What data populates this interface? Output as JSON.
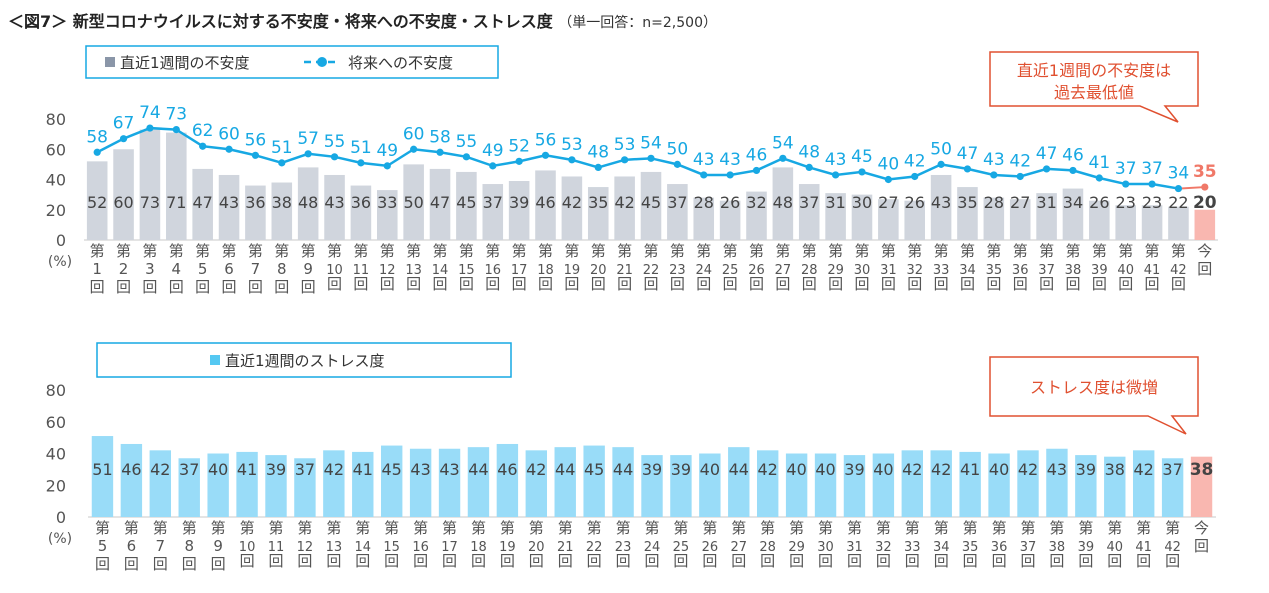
{
  "figure": {
    "title": "＜図7＞ 新型コロナウイルスに対する不安度・将来への不安度・ストレス度",
    "subtitle": "（単一回答：n=2,500）"
  },
  "colors": {
    "bar_gray": "#d0d5dd",
    "bar_blue": "#99dcf8",
    "line_blue": "#17a8e3",
    "highlight": "#f9b7b0",
    "highlight_text": "#f07868",
    "callout_border": "#e05030",
    "callout_text": "#e05030",
    "axis_text": "#555555",
    "bar_label": "#444444",
    "legend_border": "#17a8e3"
  },
  "chart_data": [
    {
      "type": "bar+line",
      "title": "",
      "ylabel": "(%)",
      "ylim": [
        0,
        80
      ],
      "yticks": [
        0,
        20,
        40,
        60,
        80
      ],
      "categories": [
        "第1回",
        "第2回",
        "第3回",
        "第4回",
        "第5回",
        "第6回",
        "第7回",
        "第8回",
        "第9回",
        "第10回",
        "第11回",
        "第12回",
        "第13回",
        "第14回",
        "第15回",
        "第16回",
        "第17回",
        "第18回",
        "第19回",
        "第20回",
        "第21回",
        "第22回",
        "第23回",
        "第24回",
        "第25回",
        "第26回",
        "第27回",
        "第28回",
        "第29回",
        "第30回",
        "第31回",
        "第32回",
        "第33回",
        "第34回",
        "第35回",
        "第36回",
        "第37回",
        "第38回",
        "第39回",
        "第40回",
        "第41回",
        "第42回",
        "今回"
      ],
      "series": [
        {
          "name": "直近1週間の不安度",
          "kind": "bar",
          "values": [
            52,
            60,
            73,
            71,
            47,
            43,
            36,
            38,
            48,
            43,
            36,
            33,
            50,
            47,
            45,
            37,
            39,
            46,
            42,
            35,
            42,
            45,
            37,
            28,
            26,
            32,
            48,
            37,
            31,
            30,
            27,
            26,
            43,
            35,
            28,
            27,
            31,
            34,
            26,
            23,
            23,
            22,
            20
          ]
        },
        {
          "name": "将来への不安度",
          "kind": "line",
          "values": [
            58,
            67,
            74,
            73,
            62,
            60,
            56,
            51,
            57,
            55,
            51,
            49,
            60,
            58,
            55,
            49,
            52,
            56,
            53,
            48,
            53,
            54,
            50,
            43,
            43,
            46,
            54,
            48,
            43,
            45,
            40,
            42,
            50,
            47,
            43,
            42,
            47,
            46,
            41,
            37,
            37,
            34,
            35
          ]
        }
      ],
      "callout": "直近1週間の不安度は\n過去最低値"
    },
    {
      "type": "bar",
      "title": "",
      "ylabel": "(%)",
      "ylim": [
        0,
        80
      ],
      "yticks": [
        0,
        20,
        40,
        60,
        80
      ],
      "categories": [
        "第5回",
        "第6回",
        "第7回",
        "第8回",
        "第9回",
        "第10回",
        "第11回",
        "第12回",
        "第13回",
        "第14回",
        "第15回",
        "第16回",
        "第17回",
        "第18回",
        "第19回",
        "第20回",
        "第21回",
        "第22回",
        "第23回",
        "第24回",
        "第25回",
        "第26回",
        "第27回",
        "第28回",
        "第29回",
        "第30回",
        "第31回",
        "第32回",
        "第33回",
        "第34回",
        "第35回",
        "第36回",
        "第37回",
        "第38回",
        "第39回",
        "第40回",
        "第41回",
        "第42回",
        "今回"
      ],
      "series": [
        {
          "name": "直近1週間のストレス度",
          "kind": "bar",
          "values": [
            51,
            46,
            42,
            37,
            40,
            41,
            39,
            37,
            42,
            41,
            45,
            43,
            43,
            44,
            46,
            42,
            44,
            45,
            44,
            39,
            39,
            40,
            44,
            42,
            40,
            40,
            39,
            40,
            42,
            42,
            41,
            40,
            42,
            43,
            39,
            38,
            42,
            37,
            38
          ]
        }
      ],
      "callout": "ストレス度は微増"
    }
  ]
}
